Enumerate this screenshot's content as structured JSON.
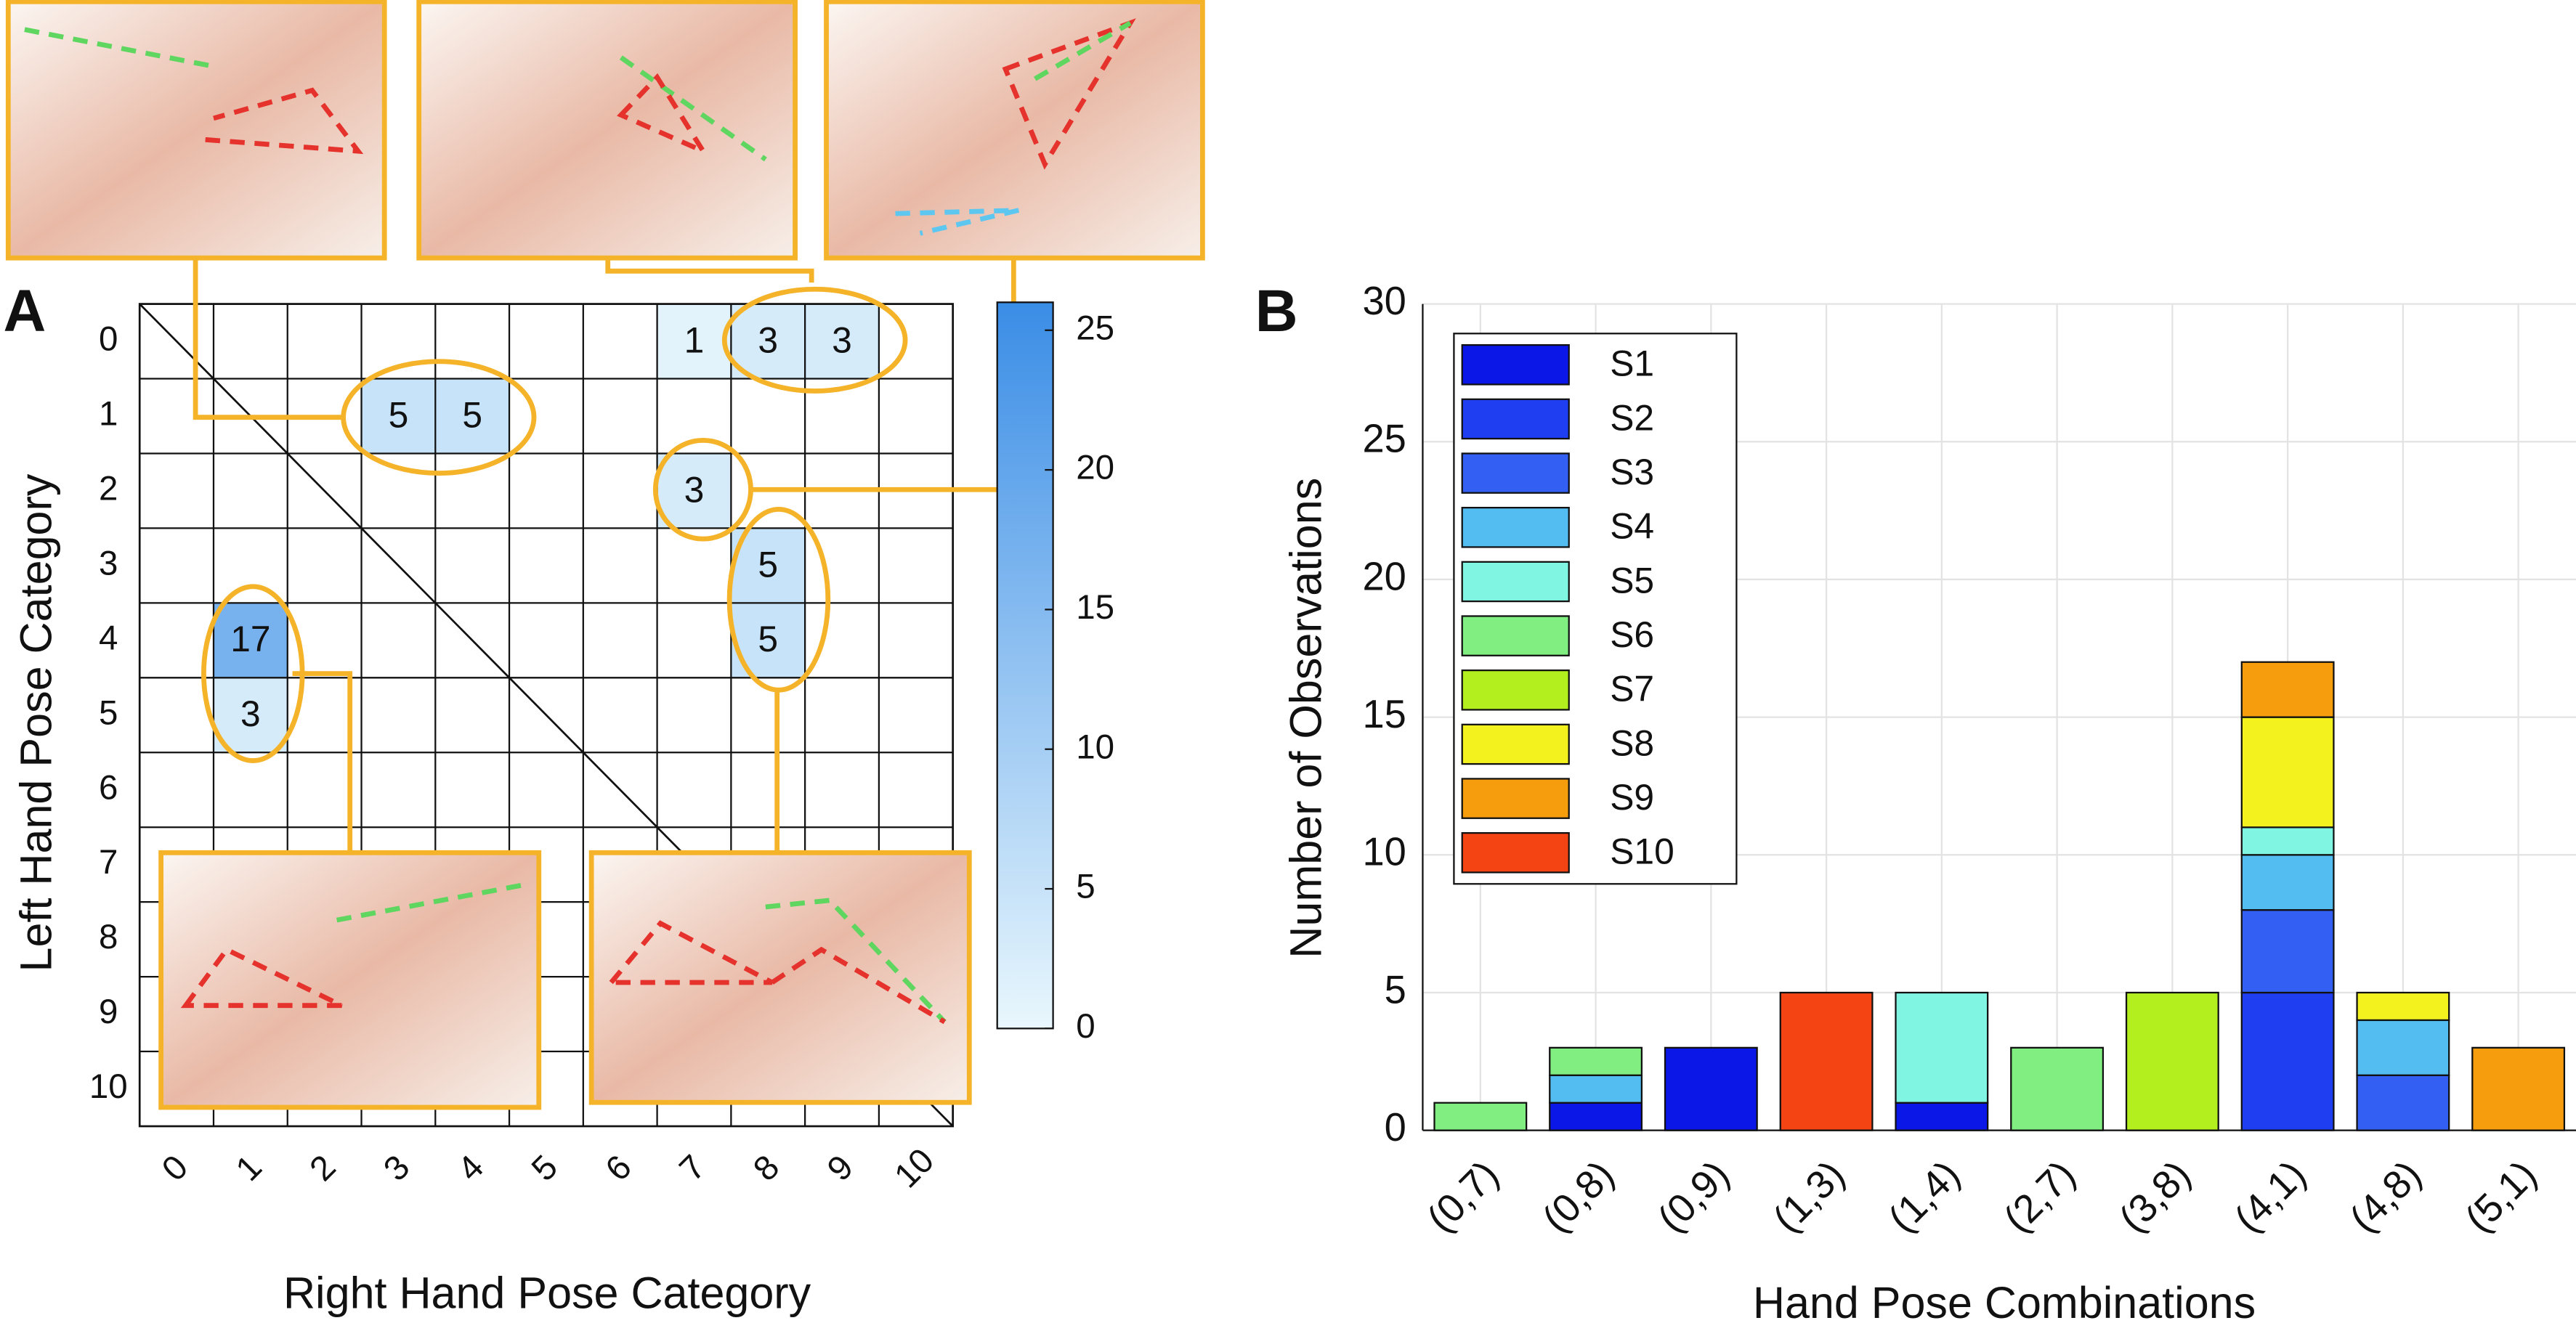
{
  "chart_data": [
    {
      "type": "heatmap",
      "panel_label": "A",
      "x_label": "Right Hand Pose Category",
      "y_label": "Left Hand Pose Category",
      "xticks": [
        0,
        1,
        2,
        3,
        4,
        5,
        6,
        7,
        8,
        9,
        10
      ],
      "yticks": [
        0,
        1,
        2,
        3,
        4,
        5,
        6,
        7,
        8,
        9,
        10
      ],
      "x": [
        7,
        8,
        9,
        3,
        4,
        7,
        8,
        8,
        1,
        1
      ],
      "y": [
        0,
        0,
        0,
        1,
        1,
        2,
        3,
        4,
        4,
        5
      ],
      "values": [
        1,
        3,
        3,
        5,
        5,
        3,
        5,
        5,
        17,
        3
      ],
      "clim": [
        0,
        26
      ],
      "colorbar_ticks": [
        0,
        5,
        10,
        15,
        20,
        25
      ],
      "colors": [
        "#e9f7fd",
        "#3a8de6"
      ]
    },
    {
      "type": "bar",
      "stacked": true,
      "panel_label": "B",
      "x_label": "Hand Pose Combinations",
      "y_label": "Number of Observations",
      "categories": [
        "(0,7)",
        "(0,8)",
        "(0,9)",
        "(1,3)",
        "(1,4)",
        "(2,7)",
        "(3,8)",
        "(4,1)",
        "(4,8)",
        "(5,1)"
      ],
      "ylim": [
        0,
        30
      ],
      "yticks": [
        0,
        5,
        10,
        15,
        20,
        25,
        30
      ],
      "grid": true,
      "legend": "top-left",
      "series": [
        {
          "name": "S1",
          "color": "#0b17e6",
          "values": [
            null,
            1,
            3,
            null,
            1,
            null,
            null,
            null,
            null,
            null
          ]
        },
        {
          "name": "S2",
          "color": "#1f3ef2",
          "values": [
            null,
            null,
            null,
            null,
            null,
            null,
            null,
            5,
            null,
            null
          ]
        },
        {
          "name": "S3",
          "color": "#3360f2",
          "values": [
            null,
            null,
            null,
            null,
            null,
            null,
            null,
            3,
            2,
            null
          ]
        },
        {
          "name": "S4",
          "color": "#53bdf2",
          "values": [
            null,
            1,
            null,
            null,
            null,
            null,
            null,
            2,
            2,
            null
          ]
        },
        {
          "name": "S5",
          "color": "#80f5e1",
          "values": [
            null,
            null,
            null,
            null,
            4,
            null,
            null,
            1,
            null,
            null
          ]
        },
        {
          "name": "S6",
          "color": "#80ee80",
          "values": [
            1,
            1,
            null,
            null,
            null,
            3,
            null,
            null,
            null,
            null
          ]
        },
        {
          "name": "S7",
          "color": "#b3ef1f",
          "values": [
            null,
            null,
            null,
            null,
            null,
            null,
            5,
            null,
            null,
            null
          ]
        },
        {
          "name": "S8",
          "color": "#f3f21e",
          "values": [
            null,
            null,
            null,
            null,
            null,
            null,
            null,
            4,
            1,
            null
          ]
        },
        {
          "name": "S9",
          "color": "#f59d0c",
          "values": [
            null,
            null,
            null,
            null,
            null,
            null,
            null,
            2,
            null,
            3
          ]
        },
        {
          "name": "S10",
          "color": "#f54414",
          "values": [
            null,
            null,
            null,
            5,
            null,
            null,
            null,
            null,
            null,
            null
          ]
        }
      ]
    }
  ]
}
